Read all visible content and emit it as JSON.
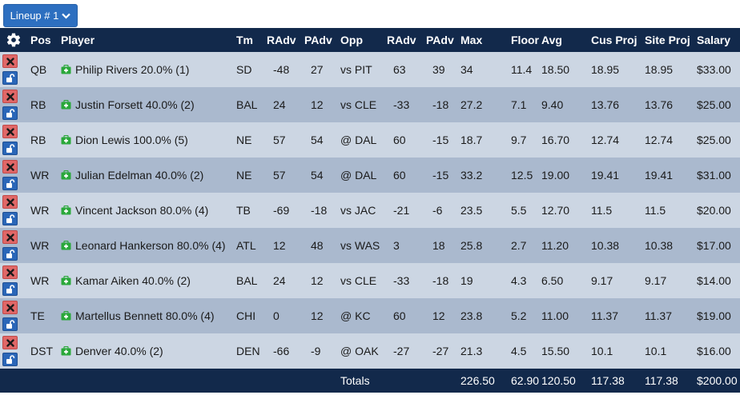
{
  "lineup_button": {
    "label": "Lineup # 1"
  },
  "table": {
    "headers": [
      "Pos",
      "Player",
      "Tm",
      "RAdv",
      "PAdv",
      "Opp",
      "RAdv",
      "PAdv",
      "Max",
      "Floor",
      "Avg",
      "Cus Proj",
      "Site Proj",
      "Salary"
    ],
    "rows": [
      {
        "pos": "QB",
        "player": "Philip Rivers 20.0% (1)",
        "tm": "SD",
        "radv": "-48",
        "padv": "27",
        "opp": "vs PIT",
        "oradv": "63",
        "opadv": "39",
        "max": "34",
        "floor": "11.4",
        "avg": "18.50",
        "cus": "18.95",
        "site": "18.95",
        "salary": "$33.00"
      },
      {
        "pos": "RB",
        "player": "Justin Forsett 40.0% (2)",
        "tm": "BAL",
        "radv": "24",
        "padv": "12",
        "opp": "vs CLE",
        "oradv": "-33",
        "opadv": "-18",
        "max": "27.2",
        "floor": "7.1",
        "avg": "9.40",
        "cus": "13.76",
        "site": "13.76",
        "salary": "$25.00"
      },
      {
        "pos": "RB",
        "player": "Dion Lewis 100.0% (5)",
        "tm": "NE",
        "radv": "57",
        "padv": "54",
        "opp": "@ DAL",
        "oradv": "60",
        "opadv": "-15",
        "max": "18.7",
        "floor": "9.7",
        "avg": "16.70",
        "cus": "12.74",
        "site": "12.74",
        "salary": "$25.00"
      },
      {
        "pos": "WR",
        "player": "Julian Edelman 40.0% (2)",
        "tm": "NE",
        "radv": "57",
        "padv": "54",
        "opp": "@ DAL",
        "oradv": "60",
        "opadv": "-15",
        "max": "33.2",
        "floor": "12.5",
        "avg": "19.00",
        "cus": "19.41",
        "site": "19.41",
        "salary": "$31.00"
      },
      {
        "pos": "WR",
        "player": "Vincent Jackson 80.0% (4)",
        "tm": "TB",
        "radv": "-69",
        "padv": "-18",
        "opp": "vs JAC",
        "oradv": "-21",
        "opadv": "-6",
        "max": "23.5",
        "floor": "5.5",
        "avg": "12.70",
        "cus": "11.5",
        "site": "11.5",
        "salary": "$20.00"
      },
      {
        "pos": "WR",
        "player": "Leonard Hankerson 80.0% (4)",
        "tm": "ATL",
        "radv": "12",
        "padv": "48",
        "opp": "vs WAS",
        "oradv": "3",
        "opadv": "18",
        "max": "25.8",
        "floor": "2.7",
        "avg": "11.20",
        "cus": "10.38",
        "site": "10.38",
        "salary": "$17.00"
      },
      {
        "pos": "WR",
        "player": "Kamar Aiken 40.0% (2)",
        "tm": "BAL",
        "radv": "24",
        "padv": "12",
        "opp": "vs CLE",
        "oradv": "-33",
        "opadv": "-18",
        "max": "19",
        "floor": "4.3",
        "avg": "6.50",
        "cus": "9.17",
        "site": "9.17",
        "salary": "$14.00"
      },
      {
        "pos": "TE",
        "player": "Martellus Bennett 80.0% (4)",
        "tm": "CHI",
        "radv": "0",
        "padv": "12",
        "opp": "@ KC",
        "oradv": "60",
        "opadv": "12",
        "max": "23.8",
        "floor": "5.2",
        "avg": "11.00",
        "cus": "11.37",
        "site": "11.37",
        "salary": "$19.00"
      },
      {
        "pos": "DST",
        "player": "Denver 40.0% (2)",
        "tm": "DEN",
        "radv": "-66",
        "padv": "-9",
        "opp": "@ OAK",
        "oradv": "-27",
        "opadv": "-27",
        "max": "21.3",
        "floor": "4.5",
        "avg": "15.50",
        "cus": "10.1",
        "site": "10.1",
        "salary": "$16.00"
      }
    ],
    "totals": {
      "label": "Totals",
      "max": "226.50",
      "floor": "62.90",
      "avg": "120.50",
      "cus": "117.38",
      "site": "117.38",
      "salary": "$200.00"
    }
  },
  "colors": {
    "header_bg": "#12294b",
    "row_light": "#ccd6e3",
    "row_dark": "#aab9ce",
    "remove_btn": "#e06767",
    "lock_btn": "#2a66b8",
    "kit_icon": "#2aa83a",
    "button": "#2d6fc0"
  },
  "icons": {
    "settings": "gear-icon",
    "remove": "close-icon",
    "lock": "unlock-icon",
    "player_kit": "medkit-icon",
    "dropdown": "chevron-down-icon"
  }
}
